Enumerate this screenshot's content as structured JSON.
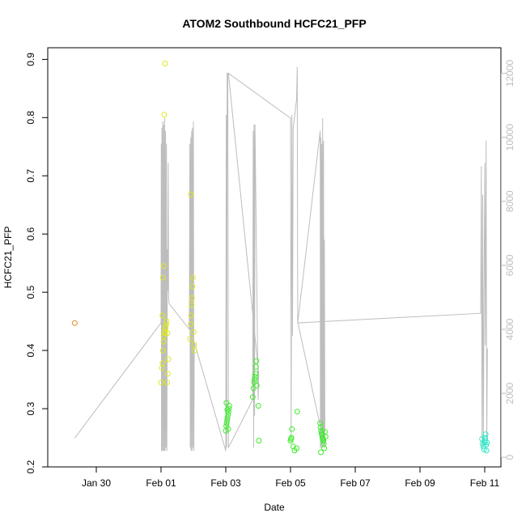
{
  "chart_data": {
    "type": "scatter",
    "title": "ATOM2 Southbound HCFC21_PFP",
    "xlabel": "Date",
    "ylabel": "HCFC21_PFP",
    "y2label": "",
    "grid": false,
    "x_range": [
      "2017-01-28T12:00",
      "2017-02-11T12:00"
    ],
    "ylim": [
      0.2,
      0.92
    ],
    "y2lim": [
      -300,
      12800
    ],
    "x_tick_labels": [
      "Jan 30",
      "Feb 01",
      "Feb 03",
      "Feb 05",
      "Feb 07",
      "Feb 09",
      "Feb 11"
    ],
    "x_tick_dates": [
      "2017-01-30",
      "2017-02-01",
      "2017-02-03",
      "2017-02-05",
      "2017-02-07",
      "2017-02-09",
      "2017-02-11"
    ],
    "y_ticks": [
      0.2,
      0.3,
      0.4,
      0.5,
      0.6,
      0.7,
      0.8,
      0.9
    ],
    "y_tick_labels": [
      "0.2",
      "0.3",
      "0.4",
      "0.5",
      "0.6",
      "0.7",
      "0.8",
      "0.9"
    ],
    "y2_ticks": [
      0,
      2000,
      4000,
      6000,
      8000,
      10000,
      12000
    ],
    "y2_tick_labels": [
      "0",
      "2000",
      "4000",
      "6000",
      "8000",
      "10000",
      "12000"
    ],
    "colors": {
      "orange": "#e88a1a",
      "yellow": "#dfe81a",
      "green": "#3dee2a",
      "cyan": "#2ee8c8",
      "altitude_line": "#bdbdbd"
    },
    "series": [
      {
        "color": "orange",
        "points": [
          [
            "2017-01-29T08:00",
            0.447
          ]
        ]
      },
      {
        "color": "yellow",
        "points": [
          [
            "2017-02-01T00:00",
            0.345
          ],
          [
            "2017-02-01T00:40",
            0.37
          ],
          [
            "2017-02-01T01:10",
            0.378
          ],
          [
            "2017-02-01T01:30",
            0.4
          ],
          [
            "2017-02-01T01:50",
            0.415
          ],
          [
            "2017-02-01T02:10",
            0.425
          ],
          [
            "2017-02-01T02:30",
            0.43
          ],
          [
            "2017-02-01T02:50",
            0.432
          ],
          [
            "2017-02-01T03:10",
            0.437
          ],
          [
            "2017-02-01T03:30",
            0.44
          ],
          [
            "2017-02-01T03:50",
            0.445
          ],
          [
            "2017-02-01T04:10",
            0.45
          ],
          [
            "2017-02-01T01:00",
            0.46
          ],
          [
            "2017-02-01T01:20",
            0.525
          ],
          [
            "2017-02-01T02:00",
            0.545
          ],
          [
            "2017-02-01T02:20",
            0.805
          ],
          [
            "2017-02-01T03:00",
            0.893
          ],
          [
            "2017-02-01T04:30",
            0.345
          ],
          [
            "2017-02-01T05:00",
            0.36
          ],
          [
            "2017-02-01T05:20",
            0.385
          ],
          [
            "2017-02-01T04:40",
            0.43
          ],
          [
            "2017-02-01T21:30",
            0.42
          ],
          [
            "2017-02-01T22:00",
            0.445
          ],
          [
            "2017-02-01T22:20",
            0.46
          ],
          [
            "2017-02-01T22:40",
            0.478
          ],
          [
            "2017-02-01T23:00",
            0.49
          ],
          [
            "2017-02-01T23:20",
            0.51
          ],
          [
            "2017-02-01T23:40",
            0.525
          ],
          [
            "2017-02-01T22:10",
            0.668
          ],
          [
            "2017-02-02T00:10",
            0.432
          ],
          [
            "2017-02-02T00:30",
            0.41
          ],
          [
            "2017-02-02T00:50",
            0.4
          ]
        ]
      },
      {
        "color": "green",
        "points": [
          [
            "2017-02-03T00:00",
            0.262
          ],
          [
            "2017-02-03T00:20",
            0.27
          ],
          [
            "2017-02-03T00:40",
            0.275
          ],
          [
            "2017-02-03T01:00",
            0.28
          ],
          [
            "2017-02-03T01:20",
            0.285
          ],
          [
            "2017-02-03T01:40",
            0.29
          ],
          [
            "2017-02-03T02:00",
            0.295
          ],
          [
            "2017-02-03T02:20",
            0.3
          ],
          [
            "2017-02-03T02:40",
            0.305
          ],
          [
            "2017-02-03T00:30",
            0.31
          ],
          [
            "2017-02-03T01:10",
            0.298
          ],
          [
            "2017-02-03T01:50",
            0.265
          ],
          [
            "2017-02-03T20:00",
            0.32
          ],
          [
            "2017-02-03T20:30",
            0.335
          ],
          [
            "2017-02-03T21:00",
            0.345
          ],
          [
            "2017-02-03T21:20",
            0.35
          ],
          [
            "2017-02-03T21:40",
            0.355
          ],
          [
            "2017-02-03T22:00",
            0.36
          ],
          [
            "2017-02-03T22:20",
            0.372
          ],
          [
            "2017-02-03T22:40",
            0.382
          ],
          [
            "2017-02-03T23:00",
            0.34
          ],
          [
            "2017-02-04T00:10",
            0.305
          ],
          [
            "2017-02-04T00:30",
            0.245
          ],
          [
            "2017-02-05T00:00",
            0.245
          ],
          [
            "2017-02-05T00:20",
            0.248
          ],
          [
            "2017-02-05T00:40",
            0.25
          ],
          [
            "2017-02-05T01:00",
            0.265
          ],
          [
            "2017-02-05T02:00",
            0.235
          ],
          [
            "2017-02-05T03:00",
            0.228
          ],
          [
            "2017-02-05T04:30",
            0.232
          ],
          [
            "2017-02-05T05:00",
            0.295
          ],
          [
            "2017-02-05T22:00",
            0.275
          ],
          [
            "2017-02-05T22:20",
            0.268
          ],
          [
            "2017-02-05T22:40",
            0.262
          ],
          [
            "2017-02-05T23:00",
            0.258
          ],
          [
            "2017-02-05T23:20",
            0.255
          ],
          [
            "2017-02-05T23:40",
            0.25
          ],
          [
            "2017-02-06T00:00",
            0.248
          ],
          [
            "2017-02-06T00:20",
            0.245
          ],
          [
            "2017-02-06T00:40",
            0.24
          ],
          [
            "2017-02-06T01:00",
            0.232
          ],
          [
            "2017-02-05T22:30",
            0.225
          ],
          [
            "2017-02-06T01:30",
            0.26
          ],
          [
            "2017-02-06T02:00",
            0.252
          ]
        ]
      },
      {
        "color": "cyan",
        "points": [
          [
            "2017-02-10T22:00",
            0.248
          ],
          [
            "2017-02-10T22:30",
            0.24
          ],
          [
            "2017-02-10T23:00",
            0.235
          ],
          [
            "2017-02-10T23:30",
            0.23
          ],
          [
            "2017-02-11T00:00",
            0.242
          ],
          [
            "2017-02-11T00:20",
            0.25
          ],
          [
            "2017-02-11T00:40",
            0.256
          ],
          [
            "2017-02-11T01:00",
            0.238
          ],
          [
            "2017-02-11T01:20",
            0.228
          ],
          [
            "2017-02-11T01:40",
            0.242
          ],
          [
            "2017-02-11T00:10",
            0.245
          ]
        ]
      }
    ],
    "altitude_line": [
      [
        "2017-01-29T08:00",
        600
      ],
      [
        "2017-02-01T00:00",
        4200
      ],
      [
        "2017-02-01T00:10",
        9800
      ],
      [
        "2017-02-01T00:20",
        200
      ],
      [
        "2017-02-01T00:40",
        10300
      ],
      [
        "2017-02-01T01:00",
        200
      ],
      [
        "2017-02-01T01:20",
        10500
      ],
      [
        "2017-02-01T01:40",
        200
      ],
      [
        "2017-02-01T02:00",
        10400
      ],
      [
        "2017-02-01T02:20",
        200
      ],
      [
        "2017-02-01T02:40",
        10600
      ],
      [
        "2017-02-01T03:00",
        200
      ],
      [
        "2017-02-01T03:20",
        10200
      ],
      [
        "2017-02-01T03:40",
        300
      ],
      [
        "2017-02-01T04:00",
        9800
      ],
      [
        "2017-02-01T04:20",
        200
      ],
      [
        "2017-02-01T04:40",
        6500
      ],
      [
        "2017-02-01T05:00",
        5200
      ],
      [
        "2017-02-01T05:20",
        9200
      ],
      [
        "2017-02-01T05:40",
        5000
      ],
      [
        "2017-02-01T06:00",
        4800
      ],
      [
        "2017-02-01T21:00",
        4000
      ],
      [
        "2017-02-01T21:20",
        9800
      ],
      [
        "2017-02-01T21:40",
        300
      ],
      [
        "2017-02-01T22:00",
        10000
      ],
      [
        "2017-02-01T22:20",
        200
      ],
      [
        "2017-02-01T22:40",
        10200
      ],
      [
        "2017-02-01T23:00",
        200
      ],
      [
        "2017-02-01T23:20",
        10300
      ],
      [
        "2017-02-01T23:40",
        300
      ],
      [
        "2017-02-02T00:00",
        10500
      ],
      [
        "2017-02-02T00:20",
        200
      ],
      [
        "2017-02-02T00:40",
        3600
      ],
      [
        "2017-02-03T00:00",
        200
      ],
      [
        "2017-02-03T00:20",
        10700
      ],
      [
        "2017-02-03T00:40",
        300
      ],
      [
        "2017-02-03T01:00",
        12000
      ],
      [
        "2017-02-03T01:30",
        12000
      ],
      [
        "2017-02-03T02:00",
        300
      ],
      [
        "2017-02-03T20:00",
        1800
      ],
      [
        "2017-02-03T20:20",
        10200
      ],
      [
        "2017-02-03T20:40",
        300
      ],
      [
        "2017-02-03T21:00",
        10400
      ],
      [
        "2017-02-03T21:20",
        1300
      ],
      [
        "2017-02-03T21:40",
        10400
      ],
      [
        "2017-02-04T00:00",
        1800
      ],
      [
        "2017-02-04T00:30",
        2600
      ],
      [
        "2017-02-03T02:00",
        12000
      ],
      [
        "2017-02-05T00:00",
        10600
      ],
      [
        "2017-02-05T00:30",
        600
      ],
      [
        "2017-02-05T01:00",
        10700
      ],
      [
        "2017-02-05T01:30",
        3800
      ],
      [
        "2017-02-05T02:00",
        10300
      ],
      [
        "2017-02-05T04:00",
        11000
      ],
      [
        "2017-02-05T04:30",
        11200
      ],
      [
        "2017-02-05T05:00",
        12200
      ],
      [
        "2017-02-05T05:20",
        4200
      ],
      [
        "2017-02-05T22:00",
        10200
      ],
      [
        "2017-02-05T22:10",
        300
      ],
      [
        "2017-02-05T22:30",
        10000
      ],
      [
        "2017-02-05T22:50",
        300
      ],
      [
        "2017-02-05T23:10",
        9800
      ],
      [
        "2017-02-05T23:30",
        400
      ],
      [
        "2017-02-05T23:50",
        10600
      ],
      [
        "2017-02-06T00:10",
        300
      ],
      [
        "2017-02-06T00:30",
        9900
      ],
      [
        "2017-02-06T00:50",
        400
      ],
      [
        "2017-02-06T01:10",
        6800
      ],
      [
        "2017-02-06T01:30",
        300
      ],
      [
        "2017-02-05T05:30",
        4200
      ],
      [
        "2017-02-10T21:00",
        4500
      ],
      [
        "2017-02-10T21:30",
        9100
      ],
      [
        "2017-02-10T22:00",
        300
      ],
      [
        "2017-02-10T22:30",
        8200
      ],
      [
        "2017-02-10T23:00",
        400
      ],
      [
        "2017-02-11T00:00",
        9200
      ],
      [
        "2017-02-11T00:30",
        3500
      ],
      [
        "2017-02-11T01:00",
        9900
      ],
      [
        "2017-02-11T01:30",
        400
      ],
      [
        "2017-02-11T02:00",
        3400
      ]
    ]
  }
}
